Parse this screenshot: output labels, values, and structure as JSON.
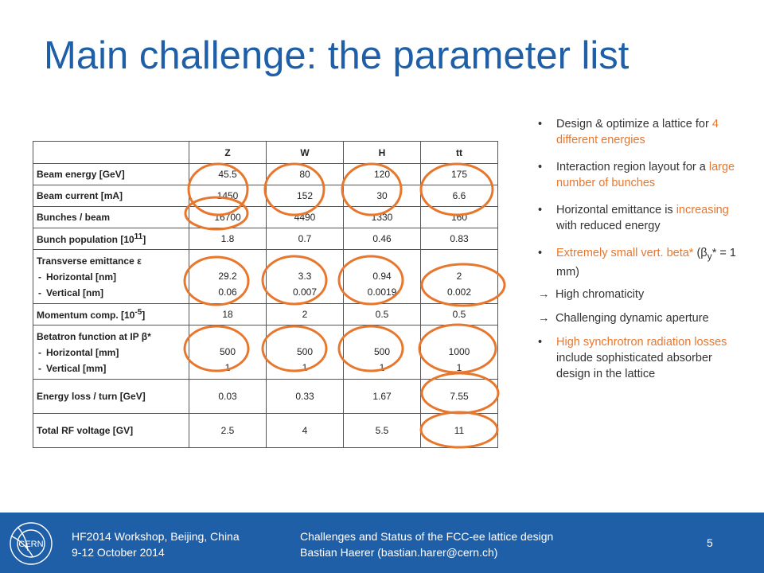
{
  "title": "Main challenge: the parameter list",
  "table": {
    "headers": [
      "",
      "Z",
      "W",
      "H",
      "tt"
    ],
    "rows": {
      "energy": {
        "label": "Beam energy [GeV]",
        "values": [
          "45.5",
          "80",
          "120",
          "175"
        ]
      },
      "current": {
        "label": "Beam current [mA]",
        "values": [
          "1450",
          "152",
          "30",
          "6.6"
        ]
      },
      "bunches": {
        "label": "Bunches / beam",
        "values": [
          "16700",
          "4490",
          "1330",
          "160"
        ]
      },
      "population": {
        "label": "Bunch population [10",
        "sup": "11",
        "close": "]",
        "values": [
          "1.8",
          "0.7",
          "0.46",
          "0.83"
        ]
      },
      "emittance": {
        "label": "Transverse emittance ε",
        "sub1": "Horizontal [nm]",
        "sub2": "Vertical [nm]",
        "h": [
          "29.2",
          "3.3",
          "0.94",
          "2"
        ],
        "v": [
          "0.06",
          "0.007",
          "0.0019",
          "0.002"
        ]
      },
      "momentum": {
        "label": "Momentum comp. [10",
        "sup": "-5",
        "close": "]",
        "values": [
          "18",
          "2",
          "0.5",
          "0.5"
        ]
      },
      "beta": {
        "label": "Betatron function at IP β*",
        "sub1": "Horizontal [mm]",
        "sub2": "Vertical [mm]",
        "h": [
          "500",
          "500",
          "500",
          "1000"
        ],
        "v": [
          "1",
          "1",
          "1",
          "1"
        ]
      },
      "eloss": {
        "label": "Energy loss / turn [GeV]",
        "values": [
          "0.03",
          "0.33",
          "1.67",
          "7.55"
        ]
      },
      "rf": {
        "label": "Total RF voltage [GV]",
        "values": [
          "2.5",
          "4",
          "5.5",
          "11"
        ]
      }
    }
  },
  "bullets": {
    "b1": {
      "pre": "Design & optimize a lattice for ",
      "hl": "4 different energies",
      "post": ""
    },
    "b2": {
      "pre": "Interaction region layout for a ",
      "hl": "large number of bunches",
      "post": ""
    },
    "b3": {
      "pre": "Horizontal emittance is ",
      "hl": "increasing",
      "post": " with reduced energy"
    },
    "b4": {
      "hl": "Extremely small vert. beta*",
      "post_a": " (β",
      "sub": "y",
      "post_b": "* = 1 mm)"
    },
    "a1": "High chromaticity",
    "a2": "Challenging dynamic aperture",
    "b5": {
      "hl": "High synchrotron radiation losses",
      "post": " include sophisticated absorber design in the lattice"
    }
  },
  "footer": {
    "workshop": "HF2014 Workshop, Beijing, China",
    "dates": "9-12 October 2014",
    "talk": "Challenges and Status of the FCC-ee lattice design",
    "author": "Bastian Haerer (bastian.harer@cern.ch)",
    "page": "5",
    "logo": "CERN"
  },
  "colors": {
    "title": "#1f5fa8",
    "accent": "#e8772e",
    "footer_bg": "#1f5fa8"
  }
}
